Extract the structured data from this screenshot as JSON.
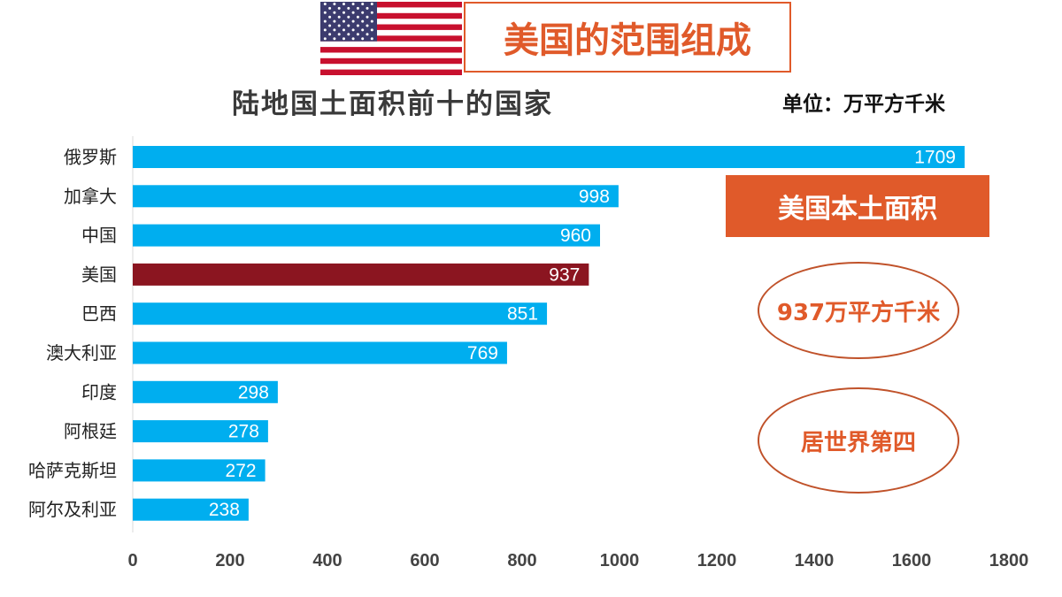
{
  "header": {
    "banner_title": "美国的范围组成",
    "chart_title": "陆地国土面积前十的国家",
    "unit": "单位：万平方千米"
  },
  "callouts": {
    "area_box": "美国本土面积",
    "area_value": "937万平方千米",
    "rank": "居世界第四"
  },
  "colors": {
    "bar": "#00aeef",
    "highlight": "#8b1520",
    "accent": "#e05a2a"
  },
  "chart_data": {
    "type": "bar",
    "orientation": "horizontal",
    "categories": [
      "俄罗斯",
      "加拿大",
      "中国",
      "美国",
      "巴西",
      "澳大利亚",
      "印度",
      "阿根廷",
      "哈萨克斯坦",
      "阿尔及利亚"
    ],
    "values": [
      1709,
      998,
      960,
      937,
      851,
      769,
      298,
      278,
      272,
      238
    ],
    "highlight_category": "美国",
    "xlim": [
      0,
      1800
    ],
    "xticks": [
      0,
      200,
      400,
      600,
      800,
      1000,
      1200,
      1400,
      1600,
      1800
    ],
    "grid": false,
    "data_labels": true
  }
}
